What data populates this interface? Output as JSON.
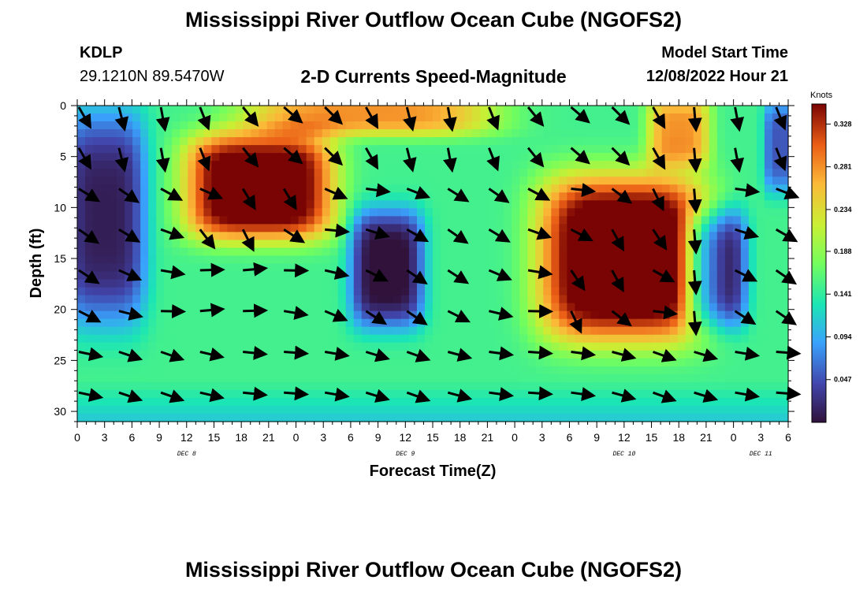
{
  "header": {
    "title": "Mississippi River Outflow Ocean Cube (NGOFS2)",
    "station": "KDLP",
    "coords": "29.1210N  89.5470W",
    "subtitle": "2-D Currents Speed-Magnitude",
    "model_start_label": "Model Start Time",
    "model_start_value": "12/08/2022 Hour 21"
  },
  "footer": {
    "title": "Mississippi River Outflow Ocean Cube (NGOFS2)"
  },
  "chart_data": {
    "type": "heatmap",
    "title": "2-D Currents Speed-Magnitude",
    "xlabel": "Forecast Time(Z)",
    "ylabel": "Depth (ft)",
    "x_ticks": [
      "0",
      "3",
      "6",
      "9",
      "12",
      "15",
      "18",
      "21",
      "0",
      "3",
      "6",
      "9",
      "12",
      "15",
      "18",
      "21",
      "0",
      "3",
      "6",
      "9",
      "12",
      "15",
      "18",
      "21",
      "0",
      "3",
      "6"
    ],
    "x_range_hours": [
      0,
      78
    ],
    "day_labels": [
      {
        "label": "DEC 8",
        "hour": 12
      },
      {
        "label": "DEC 9",
        "hour": 36
      },
      {
        "label": "DEC 10",
        "hour": 60
      },
      {
        "label": "DEC 11",
        "hour": 75
      }
    ],
    "y_ticks": [
      0,
      5,
      10,
      15,
      20,
      25,
      30
    ],
    "y_range_ft": [
      0,
      31
    ],
    "colorbar": {
      "label": "Knots",
      "ticks": [
        "0.328",
        "0.281",
        "0.234",
        "0.188",
        "0.141",
        "0.094",
        "0.047"
      ],
      "range": [
        0.0,
        0.35
      ]
    },
    "speed_regions": [
      {
        "t": 20,
        "d": 8,
        "st": 7,
        "sd": 4.5,
        "v": 0.24
      },
      {
        "t": 60,
        "d": 15,
        "st": 8,
        "sd": 7,
        "v": 0.25
      },
      {
        "t": 3,
        "d": 11,
        "st": 4,
        "sd": 9,
        "v": -0.14
      },
      {
        "t": 34,
        "d": 16,
        "st": 3.5,
        "sd": 5,
        "v": -0.16
      },
      {
        "t": 70,
        "d": 16,
        "st": 3,
        "sd": 5,
        "v": -0.16
      },
      {
        "t": 77,
        "d": 4,
        "st": 1.5,
        "sd": 4,
        "v": -0.1
      },
      {
        "t": 32,
        "d": 0.5,
        "st": 12,
        "sd": 2.2,
        "v": 0.13
      },
      {
        "t": 66,
        "d": 2.5,
        "st": 3,
        "sd": 3,
        "v": 0.13
      }
    ],
    "speed_base_knots": 0.15,
    "vector_times_h": [
      0,
      4.4,
      9,
      13.3,
      18,
      22.5,
      27,
      31.5,
      36,
      40.5,
      45,
      49.3,
      54,
      58.5,
      63,
      67.5,
      72,
      76.5
    ],
    "vector_depths_ft": [
      0,
      4,
      8,
      12,
      16,
      20,
      24,
      28
    ],
    "vector_direction_deg": {
      "rows": [
        0,
        4,
        8,
        12,
        16,
        20,
        24,
        28
      ],
      "cols_center": [
        0,
        20,
        40,
        60
      ]
    }
  }
}
